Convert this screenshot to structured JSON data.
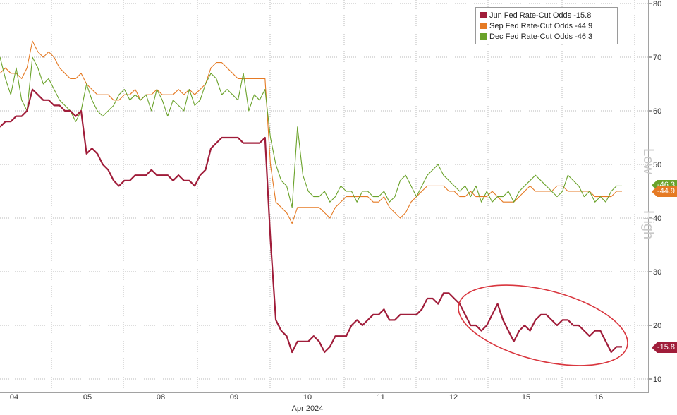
{
  "chart_data": {
    "type": "line",
    "title": "",
    "xlabel": "Apr 2024",
    "ylabel": "",
    "ylim": [
      8,
      80
    ],
    "y_ticks": [
      10,
      20,
      30,
      40,
      50,
      60,
      70,
      80
    ],
    "y_tick_labels": [
      "10",
      "20",
      "30",
      "40",
      "50",
      "60",
      "70",
      "80"
    ],
    "x_ticks": [
      "04",
      "05",
      "08",
      "09",
      "10",
      "11",
      "12",
      "15",
      "16"
    ],
    "side_labels": [
      "Low",
      "High"
    ],
    "grid": true,
    "legend_position": "top-right",
    "series": [
      {
        "name": "Jun Fed Rate-Cut Odds",
        "last": "-15.8",
        "color": "#a01d3a",
        "values": [
          57,
          58,
          58,
          59,
          59,
          60,
          64,
          63,
          62,
          62,
          61,
          61,
          60,
          60,
          59,
          60,
          52,
          53,
          52,
          50,
          49,
          47,
          46,
          47,
          47,
          48,
          48,
          48,
          49,
          48,
          48,
          48,
          47,
          48,
          47,
          47,
          46,
          48,
          49,
          53,
          54,
          55,
          55,
          55,
          55,
          54,
          54,
          54,
          54,
          55,
          36,
          21,
          19,
          18,
          15,
          17,
          17,
          17,
          18,
          17,
          15,
          16,
          18,
          18,
          18,
          20,
          21,
          20,
          21,
          22,
          22,
          23,
          21,
          21,
          22,
          22,
          22,
          22,
          23,
          25,
          25,
          24,
          26,
          26,
          25,
          24,
          22,
          20,
          20,
          19,
          20,
          22,
          24,
          21,
          19,
          17,
          19,
          20,
          19,
          21,
          22,
          22,
          21,
          20,
          21,
          21,
          20,
          20,
          19,
          18,
          19,
          19,
          17,
          15,
          16,
          16
        ]
      },
      {
        "name": "Sep Fed Rate-Cut Odds",
        "last": "-44.9",
        "color": "#e57a24",
        "values": [
          67,
          68,
          67,
          67,
          66,
          68,
          73,
          71,
          70,
          71,
          70,
          68,
          67,
          66,
          66,
          67,
          65,
          64,
          63,
          63,
          63,
          62,
          62,
          63,
          63,
          64,
          62,
          63,
          63,
          64,
          63,
          63,
          63,
          64,
          63,
          64,
          63,
          64,
          65,
          68,
          69,
          69,
          68,
          67,
          66,
          66,
          66,
          66,
          66,
          66,
          50,
          43,
          42,
          41,
          39,
          42,
          42,
          42,
          42,
          42,
          41,
          40,
          42,
          43,
          44,
          44,
          44,
          44,
          44,
          43,
          43,
          44,
          42,
          41,
          40,
          41,
          43,
          44,
          45,
          46,
          46,
          46,
          46,
          45,
          45,
          44,
          44,
          45,
          44,
          44,
          44,
          45,
          44,
          43,
          43,
          43,
          44,
          45,
          46,
          45,
          45,
          45,
          45,
          46,
          46,
          45,
          45,
          45,
          45,
          45,
          44,
          44,
          44,
          44,
          45,
          45
        ]
      },
      {
        "name": "Dec Fed Rate-Cut Odds",
        "last": "-46.3",
        "color": "#6aa22a",
        "values": [
          70,
          66,
          63,
          68,
          62,
          60,
          70,
          68,
          65,
          66,
          64,
          62,
          61,
          60,
          58,
          60,
          65,
          62,
          60,
          59,
          60,
          61,
          63,
          64,
          62,
          63,
          62,
          63,
          60,
          64,
          62,
          59,
          62,
          61,
          60,
          64,
          61,
          62,
          65,
          67,
          66,
          63,
          64,
          63,
          62,
          67,
          60,
          63,
          62,
          64,
          55,
          50,
          47,
          46,
          42,
          57,
          48,
          45,
          44,
          44,
          45,
          43,
          44,
          46,
          45,
          45,
          43,
          45,
          45,
          44,
          44,
          45,
          43,
          44,
          47,
          48,
          46,
          44,
          46,
          48,
          49,
          50,
          48,
          47,
          46,
          45,
          46,
          44,
          46,
          43,
          45,
          43,
          44,
          44,
          45,
          43,
          45,
          46,
          47,
          48,
          47,
          46,
          45,
          44,
          45,
          48,
          47,
          46,
          44,
          45,
          43,
          44,
          43,
          45,
          46,
          46
        ]
      }
    ]
  },
  "footer_hint": "sources/values row clipped at bottom"
}
